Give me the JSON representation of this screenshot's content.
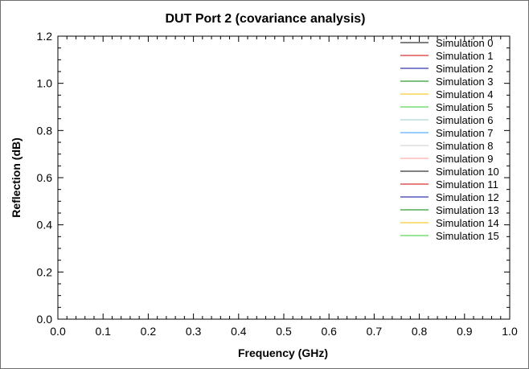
{
  "chart_data": {
    "type": "line",
    "title": "DUT Port 2 (covariance analysis)",
    "xlabel": "Frequency (GHz)",
    "ylabel": "Reflection (dB)",
    "xlim": [
      0.0,
      1.0
    ],
    "ylim": [
      0.0,
      1.2
    ],
    "x_ticks": [
      "0.0",
      "0.1",
      "0.2",
      "0.3",
      "0.4",
      "0.5",
      "0.6",
      "0.7",
      "0.8",
      "0.9",
      "1.0"
    ],
    "y_ticks": [
      "0.0",
      "0.2",
      "0.4",
      "0.6",
      "0.8",
      "1.0",
      "1.2"
    ],
    "grid": false,
    "legend_position": "top-right",
    "series": [
      {
        "name": "Simulation 0",
        "color": "#000000",
        "values": []
      },
      {
        "name": "Simulation 1",
        "color": "#cc0000",
        "values": []
      },
      {
        "name": "Simulation 2",
        "color": "#000099",
        "values": []
      },
      {
        "name": "Simulation 3",
        "color": "#008000",
        "values": []
      },
      {
        "name": "Simulation 4",
        "color": "#f2c200",
        "values": []
      },
      {
        "name": "Simulation 5",
        "color": "#33cc33",
        "values": []
      },
      {
        "name": "Simulation 6",
        "color": "#99cccc",
        "values": []
      },
      {
        "name": "Simulation 7",
        "color": "#3399ff",
        "values": []
      },
      {
        "name": "Simulation 8",
        "color": "#cccccc",
        "values": []
      },
      {
        "name": "Simulation 9",
        "color": "#ff9999",
        "values": []
      },
      {
        "name": "Simulation 10",
        "color": "#000000",
        "values": []
      },
      {
        "name": "Simulation 11",
        "color": "#cc0000",
        "values": []
      },
      {
        "name": "Simulation 12",
        "color": "#000099",
        "values": []
      },
      {
        "name": "Simulation 13",
        "color": "#008000",
        "values": []
      },
      {
        "name": "Simulation 14",
        "color": "#f2c200",
        "values": []
      },
      {
        "name": "Simulation 15",
        "color": "#33cc33",
        "values": []
      }
    ]
  }
}
